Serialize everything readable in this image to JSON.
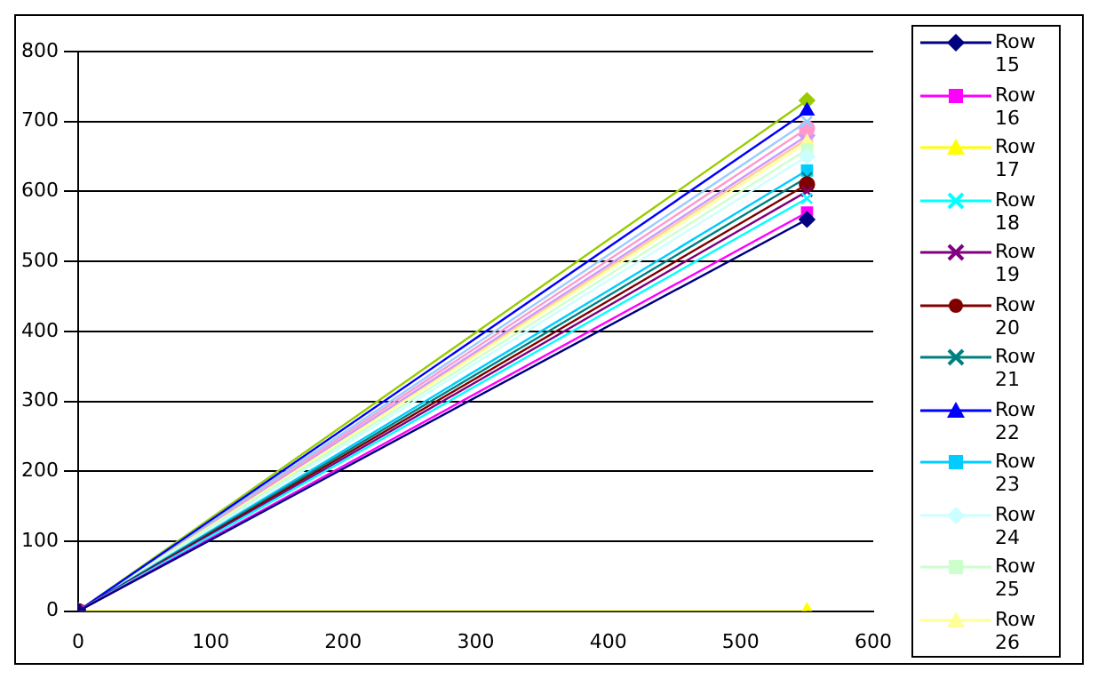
{
  "chart_data": {
    "type": "line",
    "x": [
      0,
      550
    ],
    "xlim": [
      0,
      600
    ],
    "xticks": [
      0,
      100,
      200,
      300,
      400,
      500,
      600
    ],
    "ylim": [
      0,
      800
    ],
    "yticks": [
      0,
      100,
      200,
      300,
      400,
      500,
      600,
      700,
      800
    ],
    "grid": "y",
    "legend": "right",
    "series": [
      {
        "name": "Row 15",
        "color": "#000080",
        "marker": "diamond",
        "values": [
          0,
          560
        ]
      },
      {
        "name": "Row 16",
        "color": "#ff00ff",
        "marker": "square",
        "values": [
          0,
          570
        ]
      },
      {
        "name": "Row 17",
        "color": "#ffff00",
        "marker": "triangle",
        "values": [
          0,
          0
        ]
      },
      {
        "name": "Row 18",
        "color": "#00ffff",
        "marker": "cross",
        "values": [
          0,
          590
        ]
      },
      {
        "name": "Row 19",
        "color": "#800080",
        "marker": "cross",
        "values": [
          0,
          600
        ]
      },
      {
        "name": "Row 20",
        "color": "#800000",
        "marker": "circle",
        "values": [
          0,
          610
        ]
      },
      {
        "name": "Row 21",
        "color": "#008080",
        "marker": "cross",
        "values": [
          0,
          620
        ]
      },
      {
        "name": "Row 22",
        "color": "#0000ff",
        "marker": "triangle",
        "values": [
          0,
          715
        ]
      },
      {
        "name": "Row 23",
        "color": "#00ccff",
        "marker": "square",
        "values": [
          0,
          630
        ]
      },
      {
        "name": "Row 24",
        "color": "#ccffff",
        "marker": "diamond",
        "values": [
          0,
          650
        ]
      },
      {
        "name": "Row 25",
        "color": "#ccffcc",
        "marker": "square",
        "values": [
          0,
          660
        ]
      },
      {
        "name": "Row 26",
        "color": "#ffff99",
        "marker": "triangle",
        "values": [
          0,
          670
        ]
      },
      {
        "color": "#99ccff",
        "marker": "cross",
        "values": [
          0,
          700
        ]
      },
      {
        "color": "#ff99cc",
        "marker": "circle",
        "values": [
          0,
          690
        ]
      },
      {
        "color": "#cc99ff",
        "marker": "diamond",
        "values": [
          0,
          680
        ]
      },
      {
        "color": "#ffcc99",
        "marker": "square",
        "values": [
          0,
          675
        ]
      },
      {
        "color": "#99cc00",
        "marker": "diamond",
        "values": [
          0,
          730
        ]
      }
    ]
  }
}
